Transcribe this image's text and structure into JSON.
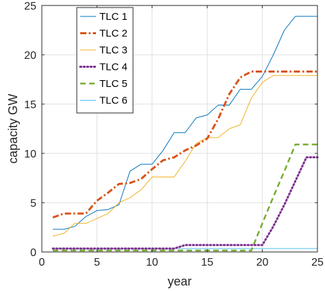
{
  "chart_data": {
    "type": "line",
    "xlabel": "year",
    "ylabel": "capacity GW",
    "xlim": [
      0,
      25
    ],
    "ylim": [
      0,
      25
    ],
    "xticks": [
      0,
      5,
      10,
      15,
      20,
      25
    ],
    "yticks": [
      0,
      5,
      10,
      15,
      20,
      25
    ],
    "grid": true,
    "legend_position": "top-left",
    "x": [
      1,
      2,
      3,
      4,
      5,
      6,
      7,
      8,
      9,
      10,
      11,
      12,
      13,
      14,
      15,
      16,
      17,
      18,
      19,
      20,
      21,
      22,
      23,
      24,
      25
    ],
    "series": [
      {
        "name": "TLC 1",
        "color": "#0072BD",
        "dash": "solid",
        "width": 1,
        "values": [
          2.3,
          2.3,
          2.6,
          3.6,
          4.2,
          4.3,
          4.8,
          8.2,
          8.9,
          8.9,
          10.3,
          12.1,
          12.1,
          13.6,
          13.9,
          14.9,
          14.9,
          16.5,
          16.5,
          17.8,
          20.0,
          22.5,
          23.9,
          23.9,
          23.9
        ]
      },
      {
        "name": "TLC 2",
        "color": "#D95319",
        "dash": "dashdot",
        "width": 3,
        "values": [
          3.5,
          3.9,
          3.9,
          3.9,
          5.2,
          6.0,
          6.9,
          7.0,
          7.4,
          8.4,
          9.3,
          9.6,
          10.3,
          10.8,
          11.5,
          13.5,
          16.0,
          17.7,
          18.3,
          18.3,
          18.3,
          18.3,
          18.3,
          18.3,
          18.3
        ]
      },
      {
        "name": "TLC 3",
        "color": "#EDB120",
        "dash": "solid",
        "width": 1,
        "values": [
          1.6,
          1.9,
          2.9,
          2.9,
          3.4,
          3.9,
          5.0,
          5.5,
          6.3,
          7.6,
          7.6,
          7.6,
          9.2,
          11.0,
          11.6,
          11.6,
          12.5,
          12.9,
          15.6,
          17.2,
          17.9,
          17.9,
          17.9,
          17.9,
          17.9
        ]
      },
      {
        "name": "TLC 4",
        "color": "#7E2F8E",
        "dash": "dotted",
        "width": 3,
        "values": [
          0.35,
          0.35,
          0.35,
          0.35,
          0.35,
          0.35,
          0.35,
          0.35,
          0.35,
          0.35,
          0.35,
          0.35,
          0.7,
          0.7,
          0.7,
          0.7,
          0.7,
          0.7,
          0.7,
          0.7,
          2.6,
          4.8,
          7.2,
          9.6,
          9.6
        ]
      },
      {
        "name": "TLC 5",
        "color": "#77AC30",
        "dash": "dashed",
        "width": 2.5,
        "values": [
          0.15,
          0.15,
          0.15,
          0.15,
          0.15,
          0.15,
          0.15,
          0.15,
          0.15,
          0.15,
          0.15,
          0.15,
          0.15,
          0.15,
          0.15,
          0.15,
          0.15,
          0.15,
          0.15,
          2.9,
          5.6,
          8.2,
          10.9,
          10.9,
          10.9
        ]
      },
      {
        "name": "TLC 6",
        "color": "#4DBEEE",
        "dash": "solid",
        "width": 1,
        "values": [
          0.35,
          0.35,
          0.35,
          0.35,
          0.35,
          0.35,
          0.35,
          0.35,
          0.35,
          0.35,
          0.35,
          0.35,
          0.35,
          0.35,
          0.35,
          0.35,
          0.35,
          0.35,
          0.35,
          0.35,
          0.35,
          0.35,
          0.35,
          0.35,
          0.35
        ]
      }
    ]
  }
}
